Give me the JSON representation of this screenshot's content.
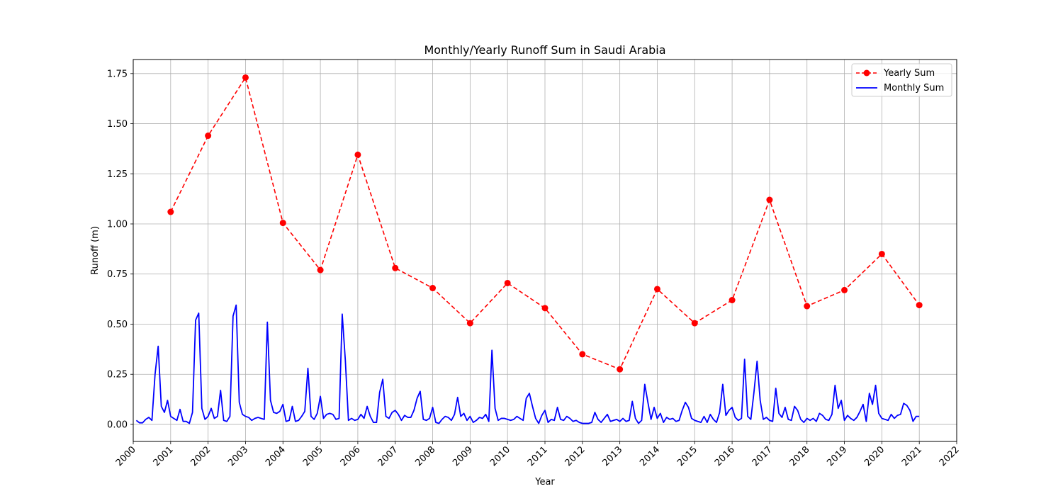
{
  "chart_data": {
    "type": "line",
    "title": "Monthly/Yearly Runoff Sum in Saudi Arabia",
    "xlabel": "Year",
    "ylabel": "Runoff (m)",
    "xlim": [
      2000,
      2022
    ],
    "ylim": [
      -0.085,
      1.82
    ],
    "x_ticks": [
      "2000",
      "2001",
      "2002",
      "2003",
      "2004",
      "2005",
      "2006",
      "2007",
      "2008",
      "2009",
      "2010",
      "2011",
      "2012",
      "2013",
      "2014",
      "2015",
      "2016",
      "2017",
      "2018",
      "2019",
      "2020",
      "2021",
      "2022"
    ],
    "y_ticks": [
      "0.00",
      "0.25",
      "0.50",
      "0.75",
      "1.00",
      "1.25",
      "1.50",
      "1.75"
    ],
    "grid": true,
    "legend_position": "top-right",
    "series": [
      {
        "name": "Yearly Sum",
        "style": "dashed-line-circle-markers",
        "color": "#ff0000",
        "x": [
          "2001",
          "2002",
          "2003",
          "2004",
          "2005",
          "2006",
          "2007",
          "2008",
          "2009",
          "2010",
          "2011",
          "2012",
          "2013",
          "2014",
          "2015",
          "2016",
          "2017",
          "2018",
          "2019",
          "2020",
          "2021"
        ],
        "values": [
          1.06,
          1.44,
          1.73,
          1.005,
          0.77,
          1.345,
          0.78,
          0.68,
          0.505,
          0.705,
          0.58,
          0.35,
          0.275,
          0.675,
          0.505,
          0.62,
          1.12,
          0.59,
          0.67,
          0.85,
          0.595
        ]
      },
      {
        "name": "Monthly Sum",
        "style": "solid-line",
        "color": "#0000ff",
        "x_start": "2000-01",
        "x_step": "1 month",
        "values": [
          0.02,
          0.008,
          0.008,
          0.025,
          0.035,
          0.02,
          0.25,
          0.39,
          0.09,
          0.06,
          0.12,
          0.04,
          0.03,
          0.02,
          0.075,
          0.015,
          0.015,
          0.005,
          0.06,
          0.52,
          0.555,
          0.08,
          0.025,
          0.04,
          0.08,
          0.03,
          0.04,
          0.17,
          0.02,
          0.015,
          0.04,
          0.54,
          0.595,
          0.11,
          0.05,
          0.04,
          0.035,
          0.02,
          0.03,
          0.035,
          0.03,
          0.025,
          0.51,
          0.12,
          0.06,
          0.055,
          0.065,
          0.1,
          0.015,
          0.02,
          0.09,
          0.015,
          0.02,
          0.04,
          0.065,
          0.28,
          0.04,
          0.025,
          0.055,
          0.14,
          0.03,
          0.05,
          0.055,
          0.05,
          0.025,
          0.03,
          0.55,
          0.32,
          0.02,
          0.03,
          0.02,
          0.025,
          0.05,
          0.03,
          0.09,
          0.04,
          0.01,
          0.01,
          0.16,
          0.225,
          0.04,
          0.03,
          0.06,
          0.07,
          0.05,
          0.02,
          0.045,
          0.035,
          0.035,
          0.07,
          0.13,
          0.165,
          0.025,
          0.02,
          0.03,
          0.085,
          0.01,
          0.005,
          0.025,
          0.04,
          0.035,
          0.02,
          0.05,
          0.135,
          0.04,
          0.055,
          0.02,
          0.04,
          0.01,
          0.02,
          0.035,
          0.03,
          0.05,
          0.015,
          0.37,
          0.08,
          0.02,
          0.03,
          0.03,
          0.025,
          0.02,
          0.025,
          0.04,
          0.03,
          0.02,
          0.13,
          0.155,
          0.09,
          0.03,
          0.005,
          0.045,
          0.07,
          0.01,
          0.025,
          0.02,
          0.085,
          0.025,
          0.02,
          0.04,
          0.03,
          0.015,
          0.02,
          0.01,
          0.005,
          0.005,
          0.005,
          0.01,
          0.06,
          0.025,
          0.01,
          0.03,
          0.05,
          0.015,
          0.02,
          0.025,
          0.015,
          0.03,
          0.015,
          0.02,
          0.115,
          0.03,
          0.005,
          0.02,
          0.2,
          0.11,
          0.025,
          0.085,
          0.03,
          0.055,
          0.01,
          0.035,
          0.025,
          0.03,
          0.015,
          0.02,
          0.07,
          0.11,
          0.085,
          0.03,
          0.02,
          0.015,
          0.01,
          0.04,
          0.01,
          0.05,
          0.025,
          0.01,
          0.06,
          0.2,
          0.045,
          0.07,
          0.085,
          0.035,
          0.02,
          0.03,
          0.325,
          0.04,
          0.025,
          0.16,
          0.315,
          0.12,
          0.025,
          0.035,
          0.02,
          0.015,
          0.18,
          0.055,
          0.035,
          0.085,
          0.025,
          0.02,
          0.09,
          0.07,
          0.025,
          0.01,
          0.03,
          0.02,
          0.03,
          0.015,
          0.055,
          0.045,
          0.025,
          0.02,
          0.05,
          0.195,
          0.08,
          0.12,
          0.02,
          0.045,
          0.03,
          0.02,
          0.035,
          0.065,
          0.1,
          0.015,
          0.155,
          0.1,
          0.195,
          0.055,
          0.03,
          0.025,
          0.02,
          0.05,
          0.03,
          0.045,
          0.05,
          0.105,
          0.095,
          0.07,
          0.015,
          0.04,
          0.04
        ]
      }
    ]
  }
}
